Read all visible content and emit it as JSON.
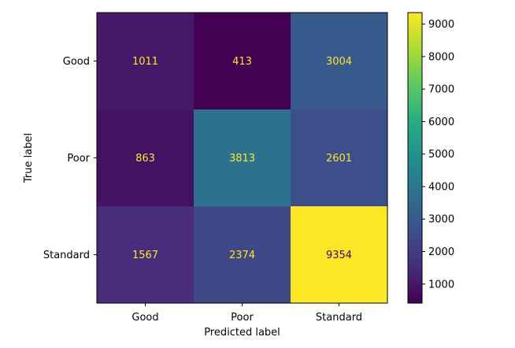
{
  "chart_data": {
    "type": "heatmap",
    "title": "",
    "xlabel": "Predicted label",
    "ylabel": "True label",
    "x_categories": [
      "Good",
      "Poor",
      "Standard"
    ],
    "y_categories": [
      "Good",
      "Poor",
      "Standard"
    ],
    "values": [
      [
        1011,
        413,
        3004
      ],
      [
        863,
        3813,
        2601
      ],
      [
        1567,
        2374,
        9354
      ]
    ],
    "colormap": "viridis",
    "colorbar": {
      "range": [
        413,
        9354
      ],
      "ticks": [
        1000,
        2000,
        3000,
        4000,
        5000,
        6000,
        7000,
        8000,
        9000
      ],
      "tick_labels": [
        "1000",
        "2000",
        "3000",
        "4000",
        "5000",
        "6000",
        "7000",
        "8000",
        "9000"
      ]
    },
    "text_colors": {
      "light": "#fde725",
      "dark": "#440154"
    }
  }
}
